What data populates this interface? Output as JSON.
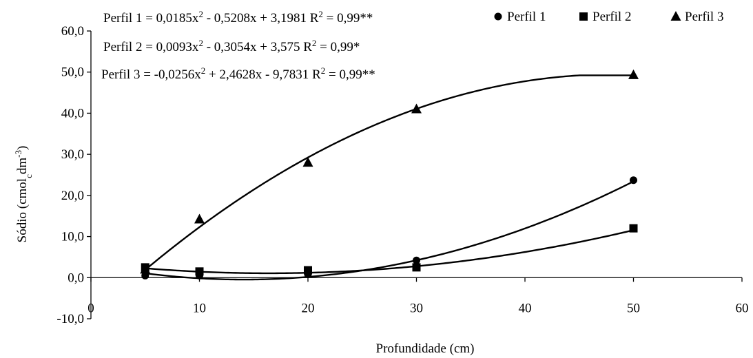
{
  "chart_data": {
    "type": "scatter",
    "xlabel": "Profundidade (cm)",
    "ylabel": {
      "base": "Sódio (cmol",
      "sub": "c",
      "mid": "dm",
      "sup": "-3",
      "end": ")"
    },
    "xlim": [
      0,
      60
    ],
    "ylim": [
      -10,
      60
    ],
    "x_ticks": [
      "0",
      "10",
      "20",
      "30",
      "40",
      "50",
      "60"
    ],
    "y_ticks": [
      "-10,0",
      "0,0",
      "10,0",
      "20,0",
      "30,0",
      "40,0",
      "50,0",
      "60,0"
    ],
    "grid": false,
    "legend_position": "top-right",
    "series": [
      {
        "name": "Perfil 1",
        "marker": "circle",
        "x": [
          5,
          10,
          20,
          30,
          50
        ],
        "y": [
          0.5,
          0.5,
          0.8,
          4.2,
          23.7
        ],
        "fit": [
          0.0185,
          -0.5208,
          3.1981
        ],
        "equation": {
          "pre": "Perfil 1 = 0,0185x",
          "sup": "2",
          "mid": " - 0,5208x + 3,1981 R",
          "sup2": "2",
          "post": " = 0,99**"
        }
      },
      {
        "name": "Perfil 2",
        "marker": "square",
        "x": [
          5,
          10,
          20,
          30,
          50
        ],
        "y": [
          2.5,
          1.5,
          1.8,
          2.5,
          12.0
        ],
        "fit": [
          0.0093,
          -0.3054,
          3.575
        ],
        "equation": {
          "pre": "Perfil 2 = 0,0093x",
          "sup": "2",
          "mid": " - 0,3054x + 3,575 R",
          "sup2": "2",
          "post": " = 0,99*"
        }
      },
      {
        "name": "Perfil 3",
        "marker": "triangle",
        "x": [
          5,
          10,
          20,
          30,
          50
        ],
        "y": [
          2.0,
          14.2,
          28.0,
          41.0,
          49.3
        ],
        "fit": [
          -0.0256,
          2.4628,
          -9.7831
        ],
        "equation": {
          "pre": "Perfil 3 = -0,0256x",
          "sup": "2",
          "mid": " + 2,4628x - 9,7831 R",
          "sup2": "2",
          "post": " = 0,99**"
        }
      }
    ]
  }
}
